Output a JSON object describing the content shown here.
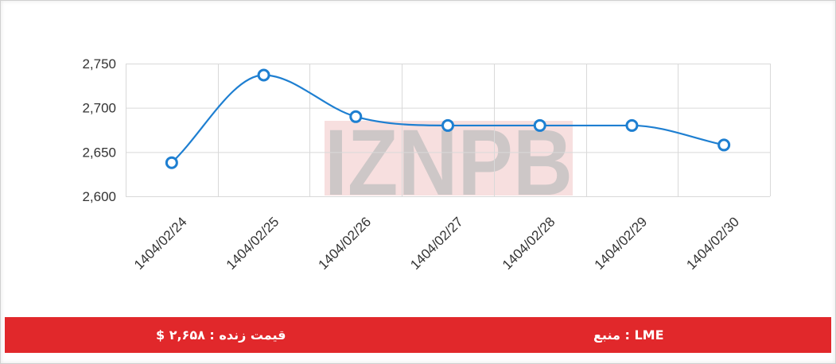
{
  "watermark": "IZNPB",
  "colors": {
    "line": "#1e7fd1",
    "grid": "#d9d9d9",
    "footer_bg": "#e1282b",
    "footer_text": "#ffffff",
    "watermark_gray": "#bfbfbf",
    "watermark_red": "#f1c4c4"
  },
  "chart_data": {
    "type": "line",
    "categories": [
      "1404/02/24",
      "1404/02/25",
      "1404/02/26",
      "1404/02/27",
      "1404/02/28",
      "1404/02/29",
      "1404/02/30"
    ],
    "series": [
      {
        "values": [
          2638,
          2737,
          2690,
          2680,
          2680,
          2680,
          2658
        ]
      }
    ],
    "yticks": [
      "2,600",
      "2,650",
      "2,700",
      "2,750"
    ],
    "ylim": [
      2600,
      2750
    ],
    "grid": true,
    "smooth": true,
    "markers": "hollow-circle"
  },
  "footer": {
    "price_label": "قیمت زنده : ۲,۶۵۸ $",
    "source_label": "منبع : LME"
  }
}
